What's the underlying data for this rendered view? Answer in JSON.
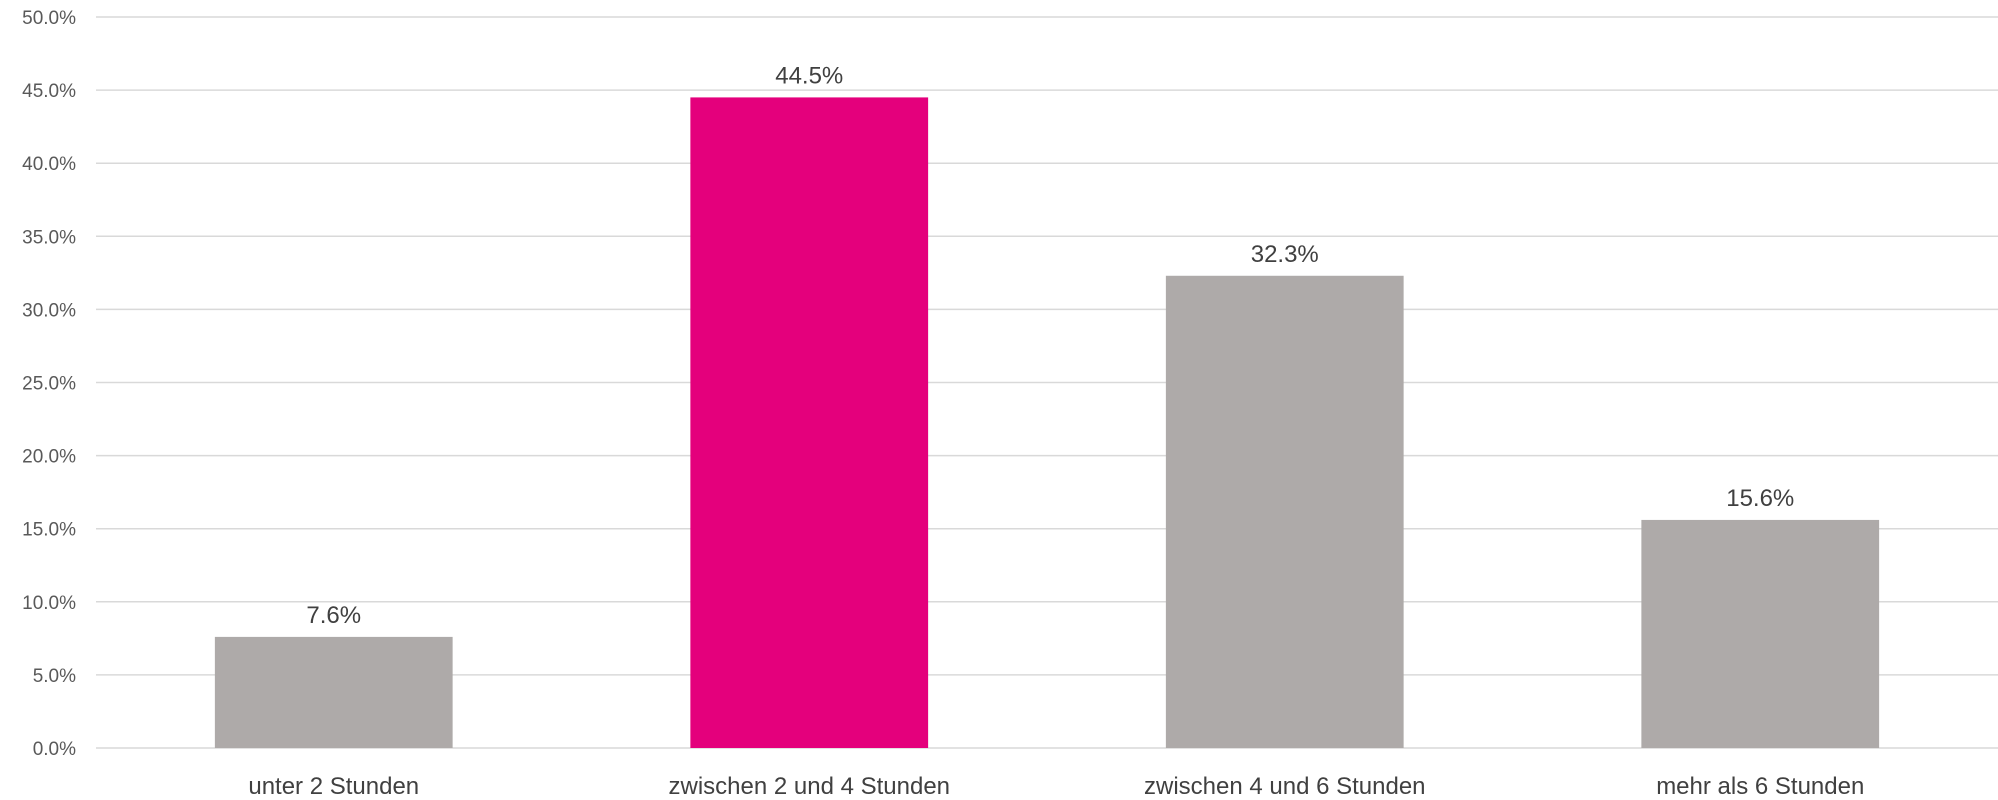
{
  "chart_data": {
    "type": "bar",
    "categories": [
      "unter 2 Stunden",
      "zwischen 2 und 4 Stunden",
      "zwischen 4 und 6 Stunden",
      "mehr als 6 Stunden"
    ],
    "values": [
      7.6,
      44.5,
      32.3,
      15.6
    ],
    "data_labels": [
      "7.6%",
      "44.5%",
      "32.3%",
      "15.6%"
    ],
    "y_ticks": [
      "0.0%",
      "5.0%",
      "10.0%",
      "15.0%",
      "20.0%",
      "25.0%",
      "30.0%",
      "35.0%",
      "40.0%",
      "45.0%",
      "50.0%"
    ],
    "ylim": [
      0,
      50
    ],
    "grid": true,
    "title": "",
    "xlabel": "",
    "ylabel": "",
    "colors": [
      "#aeaaa9",
      "#e4007c",
      "#aeaaa9",
      "#aeaaa9"
    ]
  }
}
